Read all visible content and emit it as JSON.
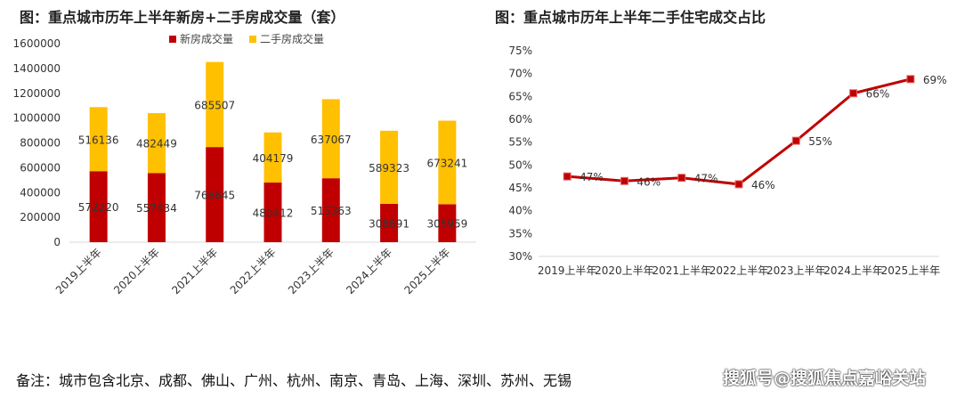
{
  "chart_data": [
    {
      "type": "bar",
      "stacked": true,
      "title": "图：重点城市历年上半年新房+二手房成交量（套）",
      "categories": [
        "2019上半年",
        "2020上半年",
        "2021上半年",
        "2022上半年",
        "2023上半年",
        "2024上半年",
        "2025上半年"
      ],
      "series": [
        {
          "name": "新房成交量",
          "color": "#c00000",
          "values": [
            572220,
            557434,
            766645,
            480412,
            515363,
            308691,
            305959
          ]
        },
        {
          "name": "二手房成交量",
          "color": "#ffc000",
          "values": [
            516136,
            482449,
            685507,
            404179,
            637067,
            589323,
            673241
          ]
        }
      ],
      "ylim": [
        0,
        1600000
      ],
      "yticks": [
        "0",
        "200000",
        "400000",
        "600000",
        "800000",
        "1000000",
        "1200000",
        "1400000",
        "1600000"
      ],
      "legend": "top",
      "grid": false
    },
    {
      "type": "line",
      "title": "图：重点城市历年上半年二手住宅成交占比",
      "categories": [
        "2019上半年",
        "2020上半年",
        "2021上半年",
        "2022上半年",
        "2023上半年",
        "2024上半年",
        "2025上半年"
      ],
      "values": [
        47.5,
        46.5,
        47.2,
        45.8,
        55.3,
        65.7,
        68.8
      ],
      "labels": [
        "47%",
        "46%",
        "47%",
        "46%",
        "55%",
        "66%",
        "69%"
      ],
      "color": "#c00000",
      "ylim": [
        30,
        75
      ],
      "yticks": [
        "30%",
        "35%",
        "40%",
        "45%",
        "50%",
        "55%",
        "60%",
        "65%",
        "70%",
        "75%"
      ],
      "grid": false
    }
  ],
  "footnote": "备注：城市包含北京、成都、佛山、广州、杭州、南京、青岛、上海、深圳、苏州、无锡",
  "watermark": "搜狐号@搜狐焦点嘉峪关站"
}
